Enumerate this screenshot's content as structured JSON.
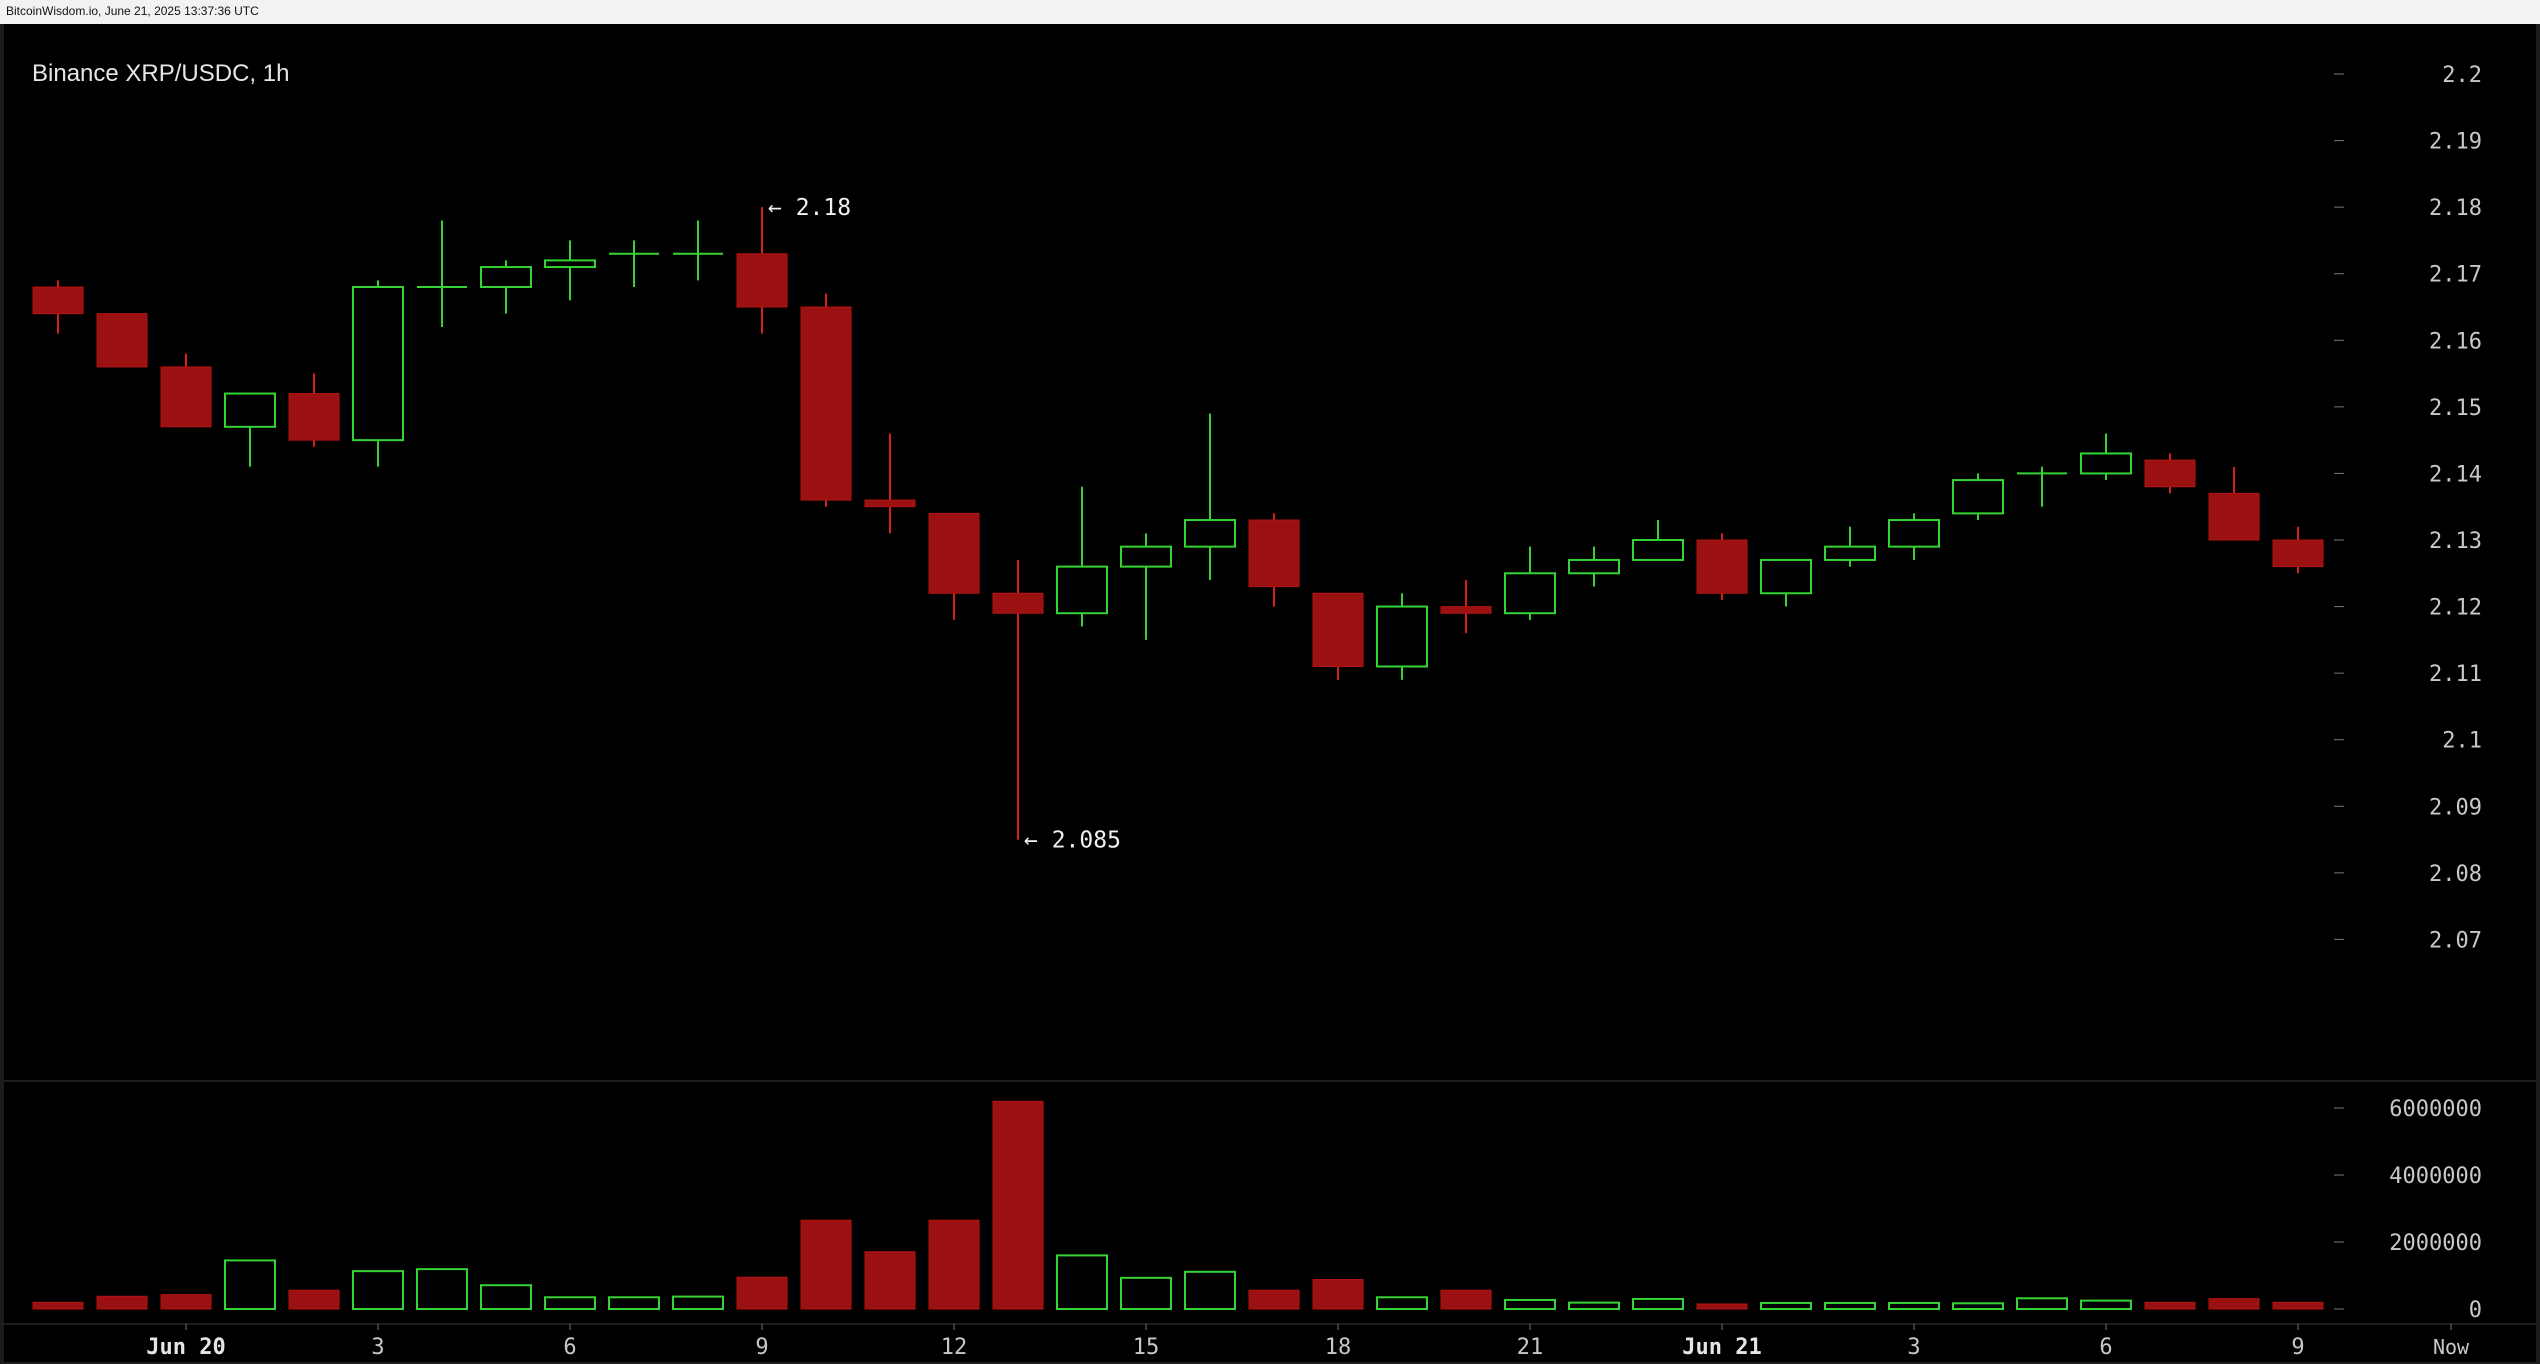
{
  "header": {
    "text": "BitcoinWisdom.io, June 21, 2025 13:37:36 UTC"
  },
  "colors": {
    "background": "#000000",
    "up": "#35d435",
    "down": "#9b1010",
    "down_wick": "#d42020",
    "text": "#e6e6e6",
    "axis_text": "#c8c8c8"
  },
  "chart_data": [
    {
      "type": "candlestick",
      "title": "Binance XRP/USDC, 1h",
      "y_ticks": [
        "2.2",
        "2.19",
        "2.18",
        "2.17",
        "2.16",
        "2.15",
        "2.14",
        "2.13",
        "2.12",
        "2.11",
        "2.1",
        "2.09",
        "2.08",
        "2.07"
      ],
      "ylim": [
        2.06,
        2.2
      ],
      "x_labels": [
        {
          "index": 2,
          "label": "Jun 20",
          "bold": true
        },
        {
          "index": 5,
          "label": "3"
        },
        {
          "index": 8,
          "label": "6"
        },
        {
          "index": 11,
          "label": "9"
        },
        {
          "index": 14,
          "label": "12"
        },
        {
          "index": 17,
          "label": "15"
        },
        {
          "index": 20,
          "label": "18"
        },
        {
          "index": 23,
          "label": "21"
        },
        {
          "index": 26,
          "label": "Jun 21",
          "bold": true
        },
        {
          "index": 29,
          "label": "3"
        },
        {
          "index": 32,
          "label": "6"
        },
        {
          "index": 35,
          "label": "9"
        },
        {
          "index": 37,
          "label": "Now"
        }
      ],
      "annotations": [
        {
          "index": 11,
          "value": 2.18,
          "text": "← 2.18",
          "anchor": "high"
        },
        {
          "index": 15,
          "value": 2.085,
          "text": "← 2.085",
          "anchor": "low"
        }
      ],
      "candles": [
        {
          "o": 2.168,
          "h": 2.169,
          "l": 2.161,
          "c": 2.164
        },
        {
          "o": 2.164,
          "h": 2.164,
          "l": 2.156,
          "c": 2.156
        },
        {
          "o": 2.156,
          "h": 2.158,
          "l": 2.147,
          "c": 2.147
        },
        {
          "o": 2.147,
          "h": 2.152,
          "l": 2.141,
          "c": 2.152
        },
        {
          "o": 2.152,
          "h": 2.155,
          "l": 2.144,
          "c": 2.145
        },
        {
          "o": 2.145,
          "h": 2.169,
          "l": 2.141,
          "c": 2.168
        },
        {
          "o": 2.168,
          "h": 2.178,
          "l": 2.162,
          "c": 2.168
        },
        {
          "o": 2.168,
          "h": 2.172,
          "l": 2.164,
          "c": 2.171
        },
        {
          "o": 2.171,
          "h": 2.175,
          "l": 2.166,
          "c": 2.172
        },
        {
          "o": 2.173,
          "h": 2.175,
          "l": 2.168,
          "c": 2.173
        },
        {
          "o": 2.173,
          "h": 2.178,
          "l": 2.169,
          "c": 2.173
        },
        {
          "o": 2.173,
          "h": 2.18,
          "l": 2.161,
          "c": 2.165
        },
        {
          "o": 2.165,
          "h": 2.167,
          "l": 2.135,
          "c": 2.136
        },
        {
          "o": 2.136,
          "h": 2.146,
          "l": 2.131,
          "c": 2.135
        },
        {
          "o": 2.134,
          "h": 2.134,
          "l": 2.118,
          "c": 2.122
        },
        {
          "o": 2.122,
          "h": 2.127,
          "l": 2.085,
          "c": 2.119
        },
        {
          "o": 2.119,
          "h": 2.138,
          "l": 2.117,
          "c": 2.126
        },
        {
          "o": 2.126,
          "h": 2.131,
          "l": 2.115,
          "c": 2.129
        },
        {
          "o": 2.129,
          "h": 2.149,
          "l": 2.124,
          "c": 2.133
        },
        {
          "o": 2.133,
          "h": 2.134,
          "l": 2.12,
          "c": 2.123
        },
        {
          "o": 2.122,
          "h": 2.122,
          "l": 2.109,
          "c": 2.111
        },
        {
          "o": 2.111,
          "h": 2.122,
          "l": 2.109,
          "c": 2.12
        },
        {
          "o": 2.12,
          "h": 2.124,
          "l": 2.116,
          "c": 2.119
        },
        {
          "o": 2.119,
          "h": 2.129,
          "l": 2.118,
          "c": 2.125
        },
        {
          "o": 2.125,
          "h": 2.129,
          "l": 2.123,
          "c": 2.127
        },
        {
          "o": 2.127,
          "h": 2.133,
          "l": 2.127,
          "c": 2.13
        },
        {
          "o": 2.13,
          "h": 2.131,
          "l": 2.121,
          "c": 2.122
        },
        {
          "o": 2.122,
          "h": 2.127,
          "l": 2.12,
          "c": 2.127
        },
        {
          "o": 2.127,
          "h": 2.132,
          "l": 2.126,
          "c": 2.129
        },
        {
          "o": 2.129,
          "h": 2.134,
          "l": 2.127,
          "c": 2.133
        },
        {
          "o": 2.134,
          "h": 2.14,
          "l": 2.133,
          "c": 2.139
        },
        {
          "o": 2.14,
          "h": 2.141,
          "l": 2.135,
          "c": 2.14
        },
        {
          "o": 2.14,
          "h": 2.146,
          "l": 2.139,
          "c": 2.143
        },
        {
          "o": 2.142,
          "h": 2.143,
          "l": 2.137,
          "c": 2.138
        },
        {
          "o": 2.137,
          "h": 2.141,
          "l": 2.13,
          "c": 2.13
        },
        {
          "o": 2.13,
          "h": 2.132,
          "l": 2.125,
          "c": 2.126
        }
      ],
      "volume": {
        "y_ticks": [
          "6000000",
          "4000000",
          "2000000",
          "0"
        ],
        "ylim": [
          0,
          6000000
        ],
        "values": [
          200000,
          380000,
          430000,
          1450000,
          560000,
          1130000,
          1190000,
          710000,
          350000,
          350000,
          370000,
          950000,
          2650000,
          1710000,
          2650000,
          6200000,
          1600000,
          930000,
          1110000,
          560000,
          880000,
          350000,
          560000,
          270000,
          190000,
          300000,
          150000,
          180000,
          180000,
          180000,
          170000,
          320000,
          250000,
          200000,
          310000,
          200000
        ]
      }
    }
  ]
}
